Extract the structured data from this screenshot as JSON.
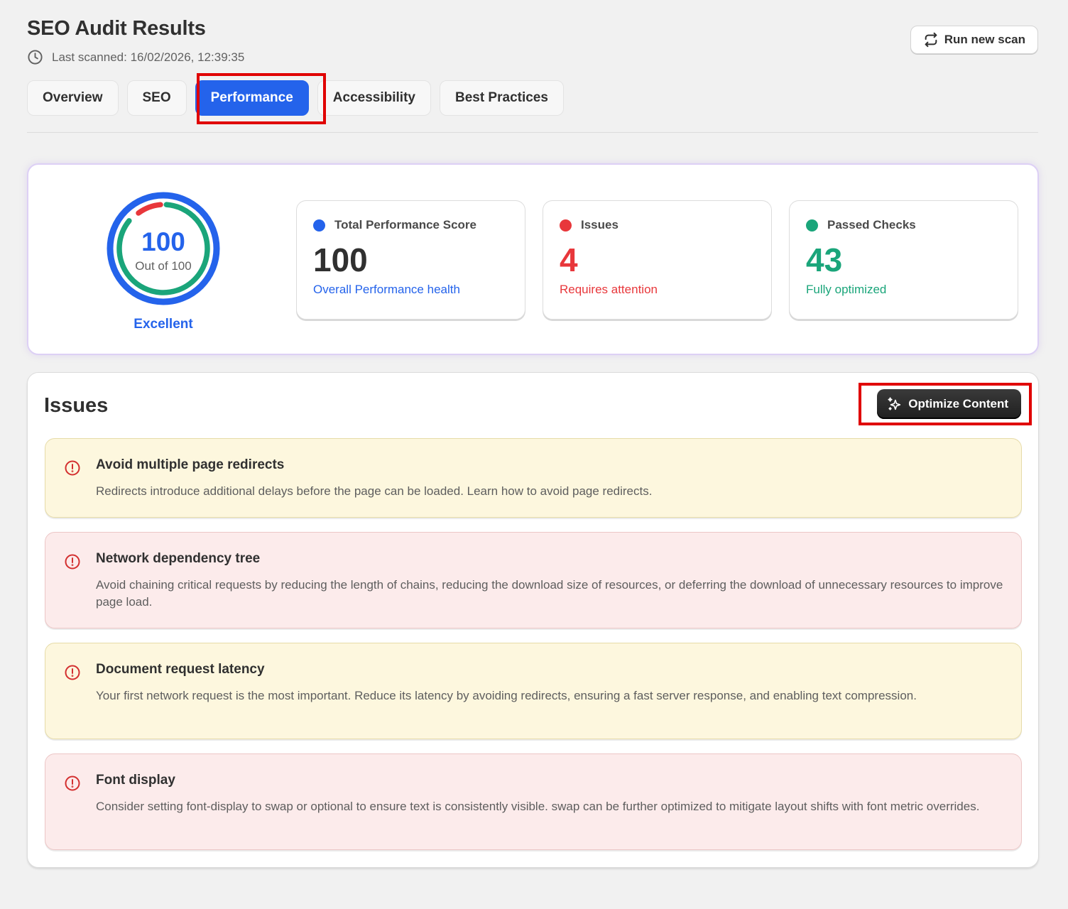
{
  "header": {
    "title": "SEO Audit Results",
    "last_scanned": "Last scanned: 16/02/2026, 12:39:35",
    "run_scan_label": "Run new scan"
  },
  "tabs": [
    {
      "label": "Overview",
      "active": false
    },
    {
      "label": "SEO",
      "active": false
    },
    {
      "label": "Performance",
      "active": true
    },
    {
      "label": "Accessibility",
      "active": false
    },
    {
      "label": "Best Practices",
      "active": false
    }
  ],
  "summary": {
    "gauge": {
      "score": "100",
      "sub": "Out of 100",
      "rating": "Excellent",
      "value": 100
    },
    "cards": [
      {
        "label": "Total Performance Score",
        "value": "100",
        "desc": "Overall Performance health",
        "color": "#2463eb"
      },
      {
        "label": "Issues",
        "value": "4",
        "desc": "Requires attention",
        "color": "#e8373b"
      },
      {
        "label": "Passed Checks",
        "value": "43",
        "desc": "Fully optimized",
        "color": "#1aa57a"
      }
    ]
  },
  "issues": {
    "title": "Issues",
    "optimize_label": "Optimize Content",
    "items": [
      {
        "title": "Avoid multiple page redirects",
        "desc": "Redirects introduce additional delays before the page can be loaded. Learn how to avoid page redirects.",
        "severity": "warning"
      },
      {
        "title": "Network dependency tree",
        "desc": "Avoid chaining critical requests by reducing the length of chains, reducing the download size of resources, or deferring the download of unnecessary resources to improve page load.",
        "severity": "critical"
      },
      {
        "title": "Document request latency",
        "desc": "Your first network request is the most important. Reduce its latency by avoiding redirects, ensuring a fast server response, and enabling text compression.",
        "severity": "warning"
      },
      {
        "title": "Font display",
        "desc": "Consider setting font-display to swap or optional to ensure text is consistently visible. swap can be further optimized to mitigate layout shifts with font metric overrides.",
        "severity": "critical"
      }
    ]
  },
  "colors": {
    "accent": "#2463eb",
    "danger": "#e8373b",
    "success": "#1aa57a",
    "annotation": "#e00000"
  }
}
